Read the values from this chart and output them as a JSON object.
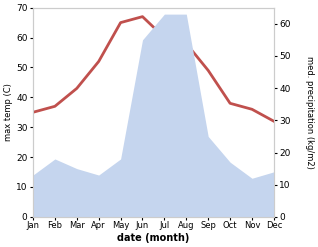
{
  "months": [
    "Jan",
    "Feb",
    "Mar",
    "Apr",
    "May",
    "Jun",
    "Jul",
    "Aug",
    "Sep",
    "Oct",
    "Nov",
    "Dec"
  ],
  "temperature": [
    35,
    37,
    43,
    52,
    65,
    67,
    60,
    58,
    49,
    38,
    36,
    32
  ],
  "precipitation": [
    13,
    18,
    15,
    13,
    18,
    55,
    63,
    63,
    25,
    17,
    12,
    14
  ],
  "temp_color": "#c0504d",
  "precip_color": "#c5d5ee",
  "left_ylabel": "max temp (C)",
  "right_ylabel": "med. precipitation (kg/m2)",
  "xlabel": "date (month)",
  "ylim_left": [
    0,
    70
  ],
  "ylim_right": [
    0,
    65
  ],
  "left_yticks": [
    0,
    10,
    20,
    30,
    40,
    50,
    60,
    70
  ],
  "right_yticks": [
    0,
    10,
    20,
    30,
    40,
    50,
    60
  ],
  "spine_color": "#cccccc",
  "linewidth": 2.0
}
